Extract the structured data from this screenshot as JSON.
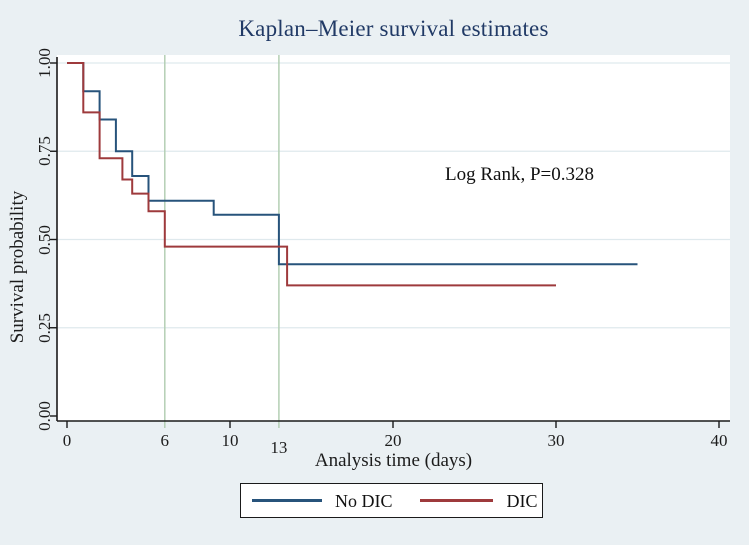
{
  "figure": {
    "background_color": "#eaf0f3",
    "plot_background": "#ffffff",
    "axis_color": "#1a1a1a",
    "text_color": "#1c1c1c",
    "title_color": "#213a66"
  },
  "chart_data": {
    "type": "line",
    "variant": "kaplan-meier-step",
    "title": "Kaplan–Meier survival estimates",
    "xlabel": "Analysis time (days)",
    "ylabel": "Survival probability",
    "xlim": [
      0,
      40
    ],
    "ylim": [
      0,
      1
    ],
    "xticks": [
      0,
      10,
      20,
      30,
      40
    ],
    "yticks": [
      1.0,
      0.75,
      0.5,
      0.25,
      0.0
    ],
    "ytick_labels": [
      "1.00",
      "0.75",
      "0.50",
      "0.25",
      "0.00"
    ],
    "grid": "horizontal gridlines at 0.25, 0.50, 0.75, 1.00",
    "gridline_color": "#dfe9ed",
    "reference_lines_x": [
      6,
      13
    ],
    "reference_tick_labels": [
      "6",
      "13"
    ],
    "reference_line_color": "#b4cfb4",
    "annotation": "Log Rank, P=0.328",
    "legend_position": "bottom-center",
    "series": [
      {
        "name": "No DIC",
        "color": "#27537b",
        "steps": [
          [
            0,
            1.0
          ],
          [
            1,
            0.92
          ],
          [
            2,
            0.84
          ],
          [
            3,
            0.75
          ],
          [
            4,
            0.68
          ],
          [
            5,
            0.61
          ],
          [
            9,
            0.57
          ],
          [
            13,
            0.43
          ]
        ],
        "end_time": 35
      },
      {
        "name": "DIC",
        "color": "#9e3a3c",
        "steps": [
          [
            0,
            1.0
          ],
          [
            1,
            0.86
          ],
          [
            2,
            0.73
          ],
          [
            3.4,
            0.67
          ],
          [
            4,
            0.63
          ],
          [
            5,
            0.58
          ],
          [
            6,
            0.48
          ],
          [
            13.5,
            0.37
          ]
        ],
        "end_time": 30
      }
    ]
  }
}
